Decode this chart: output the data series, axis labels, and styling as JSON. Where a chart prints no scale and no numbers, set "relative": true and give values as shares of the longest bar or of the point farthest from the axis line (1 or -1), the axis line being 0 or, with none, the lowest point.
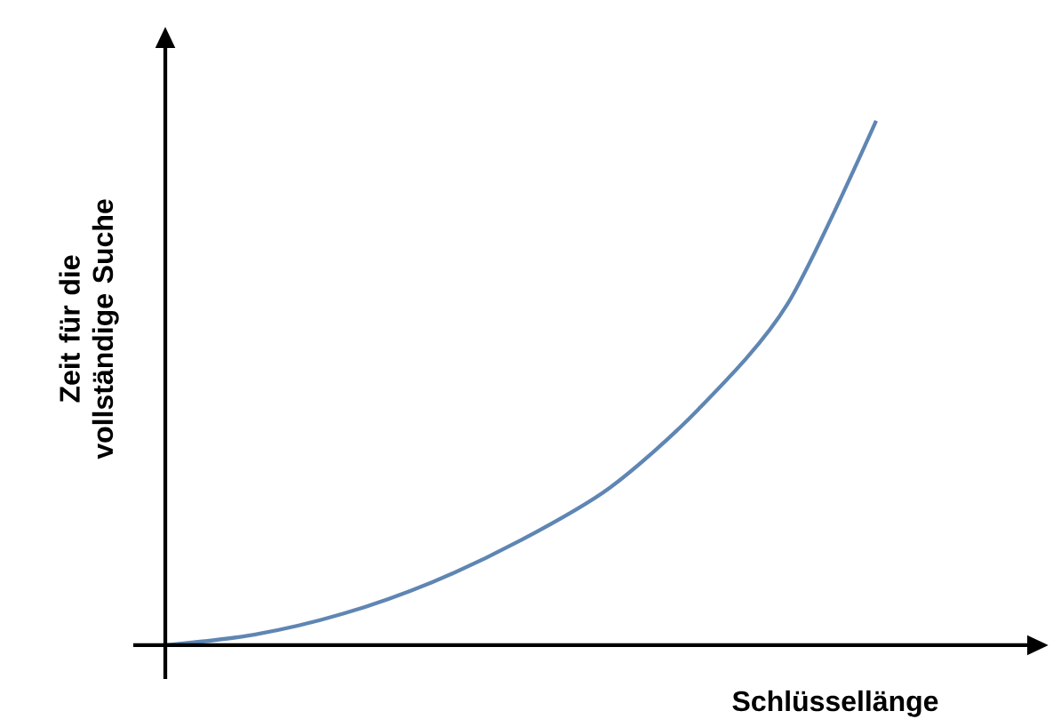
{
  "chart_data": {
    "type": "line",
    "relative": true,
    "xlabel": "Schlüssellänge",
    "ylabel": "Zeit für die vollständige Suche",
    "categories": [
      null,
      null,
      null,
      null,
      null,
      null,
      null,
      null,
      null
    ],
    "series": [
      {
        "color": "#5f86b3",
        "values": [
          0,
          0.02,
          0.06,
          0.12,
          0.2,
          0.3,
          0.45,
          0.65,
          1.0
        ]
      }
    ]
  }
}
